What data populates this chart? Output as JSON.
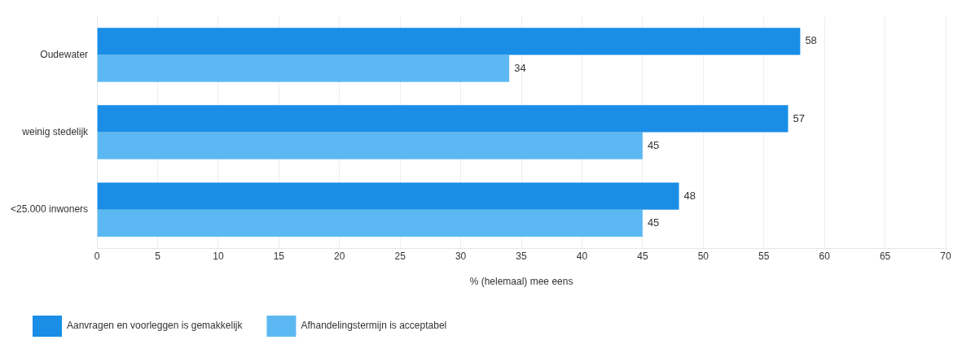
{
  "chart_data": {
    "type": "bar",
    "orientation": "horizontal",
    "xlabel": "% (helemaal) mee eens",
    "categories": [
      "Oudewater",
      "weinig stedelijk",
      "<25.000 inwoners"
    ],
    "series": [
      {
        "name": "Aanvragen en voorleggen is gemakkelijk",
        "color": "#1a8ee6",
        "values": [
          58,
          57,
          48
        ]
      },
      {
        "name": "Afhandelingstermijn is acceptabel",
        "color": "#5cb8f2",
        "values": [
          34,
          45,
          45
        ]
      }
    ],
    "xlim": [
      0,
      70
    ],
    "xticks": [
      0,
      5,
      10,
      15,
      20,
      25,
      30,
      35,
      40,
      45,
      50,
      55,
      60,
      65,
      70
    ],
    "grid": "x",
    "legend": "bottom left",
    "data_labels": true
  }
}
